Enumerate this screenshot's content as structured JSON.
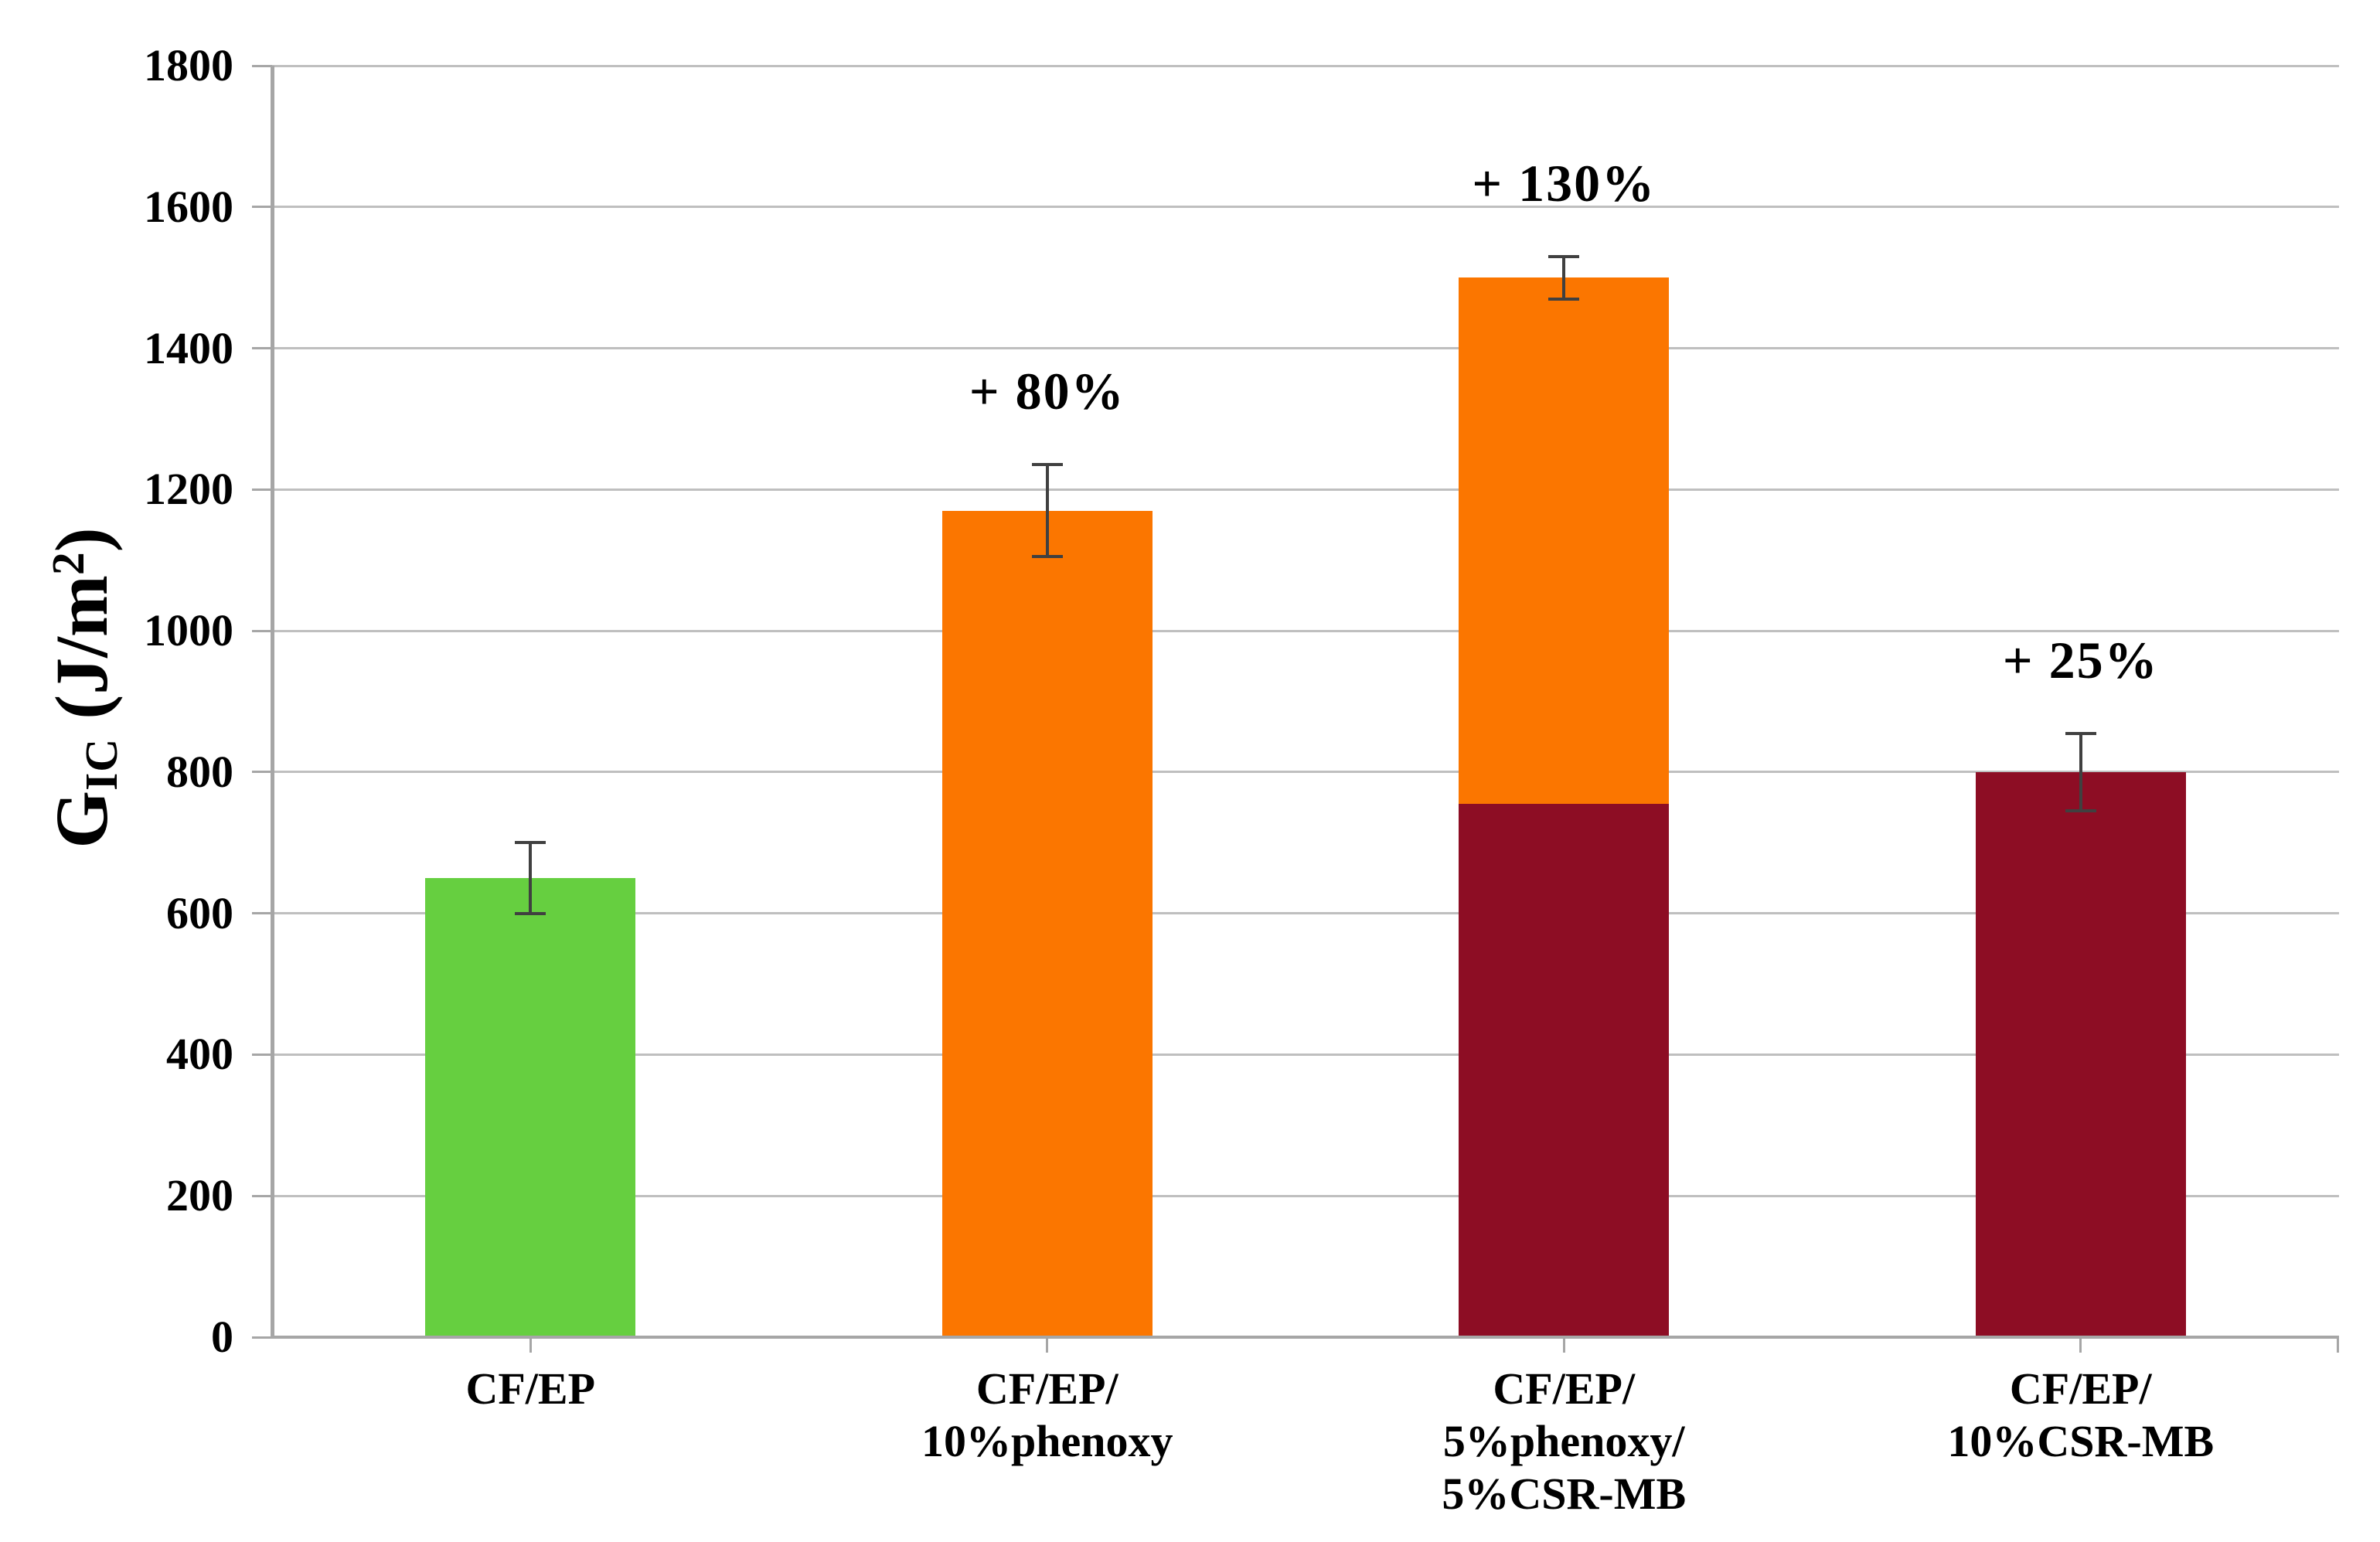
{
  "chart_data": {
    "type": "bar",
    "title": "",
    "ylabel": {
      "text": "G_IC (J/m2)",
      "parts": {
        "main": "G",
        "sub": "IC",
        "mid": " (J/m",
        "sup": "2",
        "end": ")"
      }
    },
    "xlabel": "",
    "ylim": [
      0,
      1800
    ],
    "ytick_interval": 200,
    "yticks": [
      0,
      200,
      400,
      600,
      800,
      1000,
      1200,
      1400,
      1600,
      1800
    ],
    "grid": "horizontal",
    "legend": "none",
    "categories": [
      {
        "label_lines": [
          "CF/EP"
        ]
      },
      {
        "label_lines": [
          "CF/EP/",
          "10%phenoxy"
        ]
      },
      {
        "label_lines": [
          "CF/EP/",
          "5%phenoxy/",
          "5%CSR-MB"
        ]
      },
      {
        "label_lines": [
          "CF/EP/",
          "10%CSR-MB"
        ]
      }
    ],
    "bars": [
      {
        "category": "CF/EP",
        "segments": [
          {
            "value": 650,
            "color": "#66CF40"
          }
        ],
        "total": 650,
        "error_plus_minus": 50,
        "annotation": ""
      },
      {
        "category": "CF/EP/10%phenoxy",
        "segments": [
          {
            "value": 1170,
            "color": "#FB7600"
          }
        ],
        "total": 1170,
        "error_plus_minus": 65,
        "annotation": "+ 80%"
      },
      {
        "category": "CF/EP/5%phenoxy/5%CSR-MB",
        "segments": [
          {
            "value": 755,
            "color": "#8D0D24"
          },
          {
            "value": 745,
            "color": "#FB7600"
          }
        ],
        "total": 1500,
        "error_plus_minus": 30,
        "annotation": "+ 130%"
      },
      {
        "category": "CF/EP/10%CSR-MB",
        "segments": [
          {
            "value": 800,
            "color": "#8D0D24"
          }
        ],
        "total": 800,
        "error_plus_minus": 55,
        "annotation": "+ 25%"
      }
    ],
    "colors": {
      "background": "#FFFFFF",
      "gridline": "#BFBFBF",
      "axis": "#A6A6A6",
      "error_bar": "#404040",
      "text": "#000000",
      "bar_green": "#66CF40",
      "bar_orange": "#FB7600",
      "bar_dark_red": "#8D0D24"
    }
  }
}
